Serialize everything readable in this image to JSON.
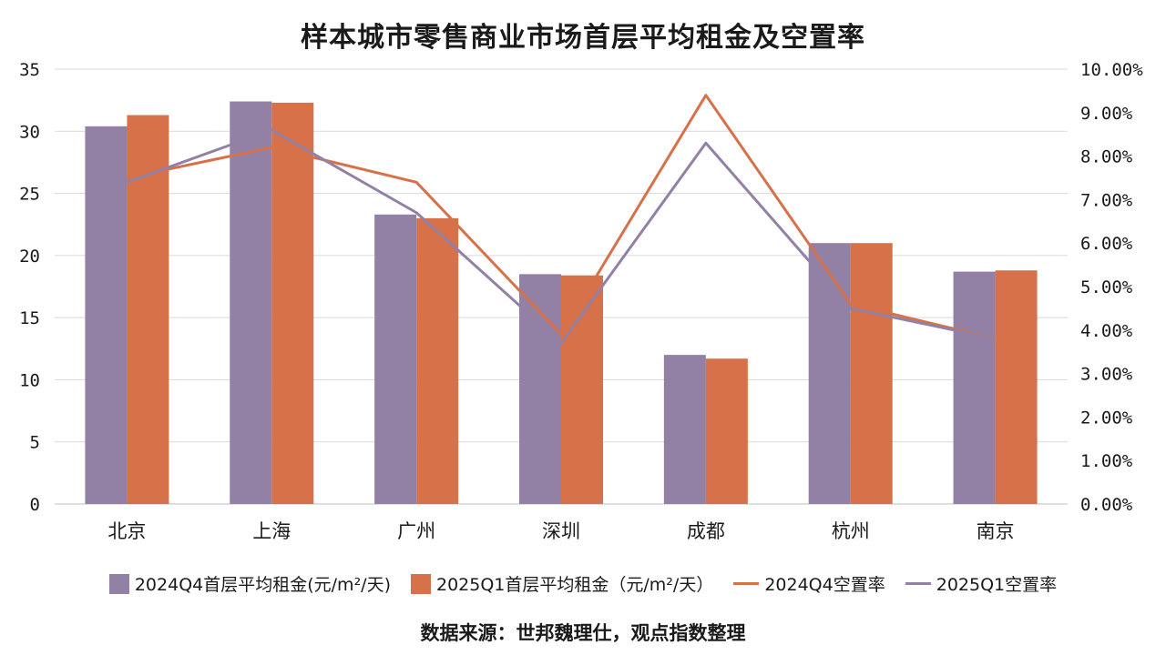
{
  "chart_data": {
    "type": "bar",
    "title": "样本城市零售商业市场首层平均租金及空置率",
    "categories": [
      "北京",
      "上海",
      "广州",
      "深圳",
      "成都",
      "杭州",
      "南京"
    ],
    "series": [
      {
        "name": "2024Q4首层平均租金(元/m²/天)",
        "type": "bar",
        "axis": "left",
        "color": "#9281a4",
        "values": [
          30.4,
          32.4,
          23.3,
          18.5,
          12.0,
          21.0,
          18.7
        ]
      },
      {
        "name": "2025Q1首层平均租金（元/m²/天）",
        "type": "bar",
        "axis": "left",
        "color": "#d6714a",
        "values": [
          31.3,
          32.3,
          23.0,
          18.4,
          11.7,
          21.0,
          18.8
        ]
      },
      {
        "name": "2024Q4空置率",
        "type": "line",
        "axis": "right",
        "color": "#d6714a",
        "values": [
          7.5,
          8.2,
          7.4,
          3.9,
          9.4,
          4.6,
          3.8
        ]
      },
      {
        "name": "2025Q1空置率",
        "type": "line",
        "axis": "right",
        "color": "#9281a4",
        "values": [
          7.4,
          8.6,
          6.7,
          3.7,
          8.3,
          4.5,
          3.8
        ]
      }
    ],
    "ylim_left": [
      0,
      35
    ],
    "yticks_left": [
      "0",
      "5",
      "10",
      "15",
      "20",
      "25",
      "30",
      "35"
    ],
    "ylim_right": [
      0,
      10
    ],
    "yticks_right": [
      "0.00%",
      "1.00%",
      "2.00%",
      "3.00%",
      "4.00%",
      "5.00%",
      "6.00%",
      "7.00%",
      "8.00%",
      "9.00%",
      "10.00%"
    ],
    "grid": true,
    "legend_position": "bottom"
  },
  "legend": [
    {
      "label": "2024Q4首层平均租金(元/m²/天)",
      "kind": "bar",
      "color": "#9281a4"
    },
    {
      "label": "2025Q1首层平均租金（元/m²/天）",
      "kind": "bar",
      "color": "#d6714a"
    },
    {
      "label": "2024Q4空置率",
      "kind": "line",
      "color": "#d6714a"
    },
    {
      "label": "2025Q1空置率",
      "kind": "line",
      "color": "#9281a4"
    }
  ],
  "source_note": "数据来源：世邦魏理仕，观点指数整理"
}
